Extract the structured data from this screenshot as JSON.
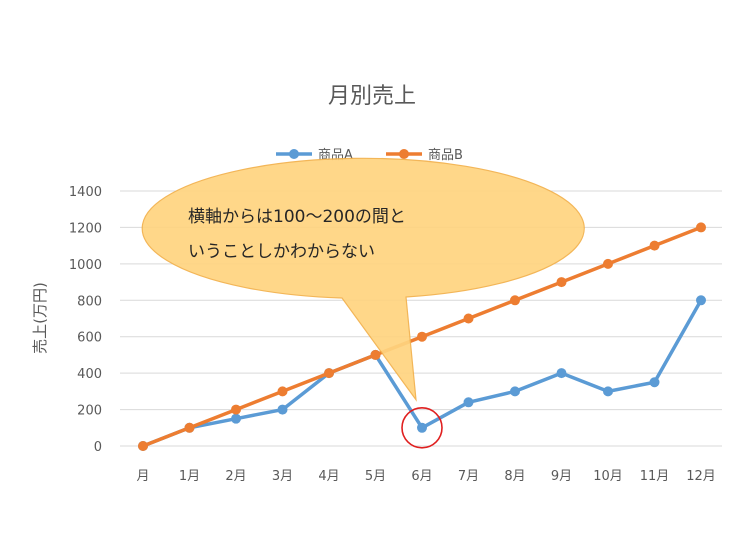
{
  "chart_data": {
    "type": "line",
    "title": "月別売上",
    "ylabel": "売上(万円)",
    "xlabel": "",
    "categories": [
      "月",
      "1月",
      "2月",
      "3月",
      "4月",
      "5月",
      "6月",
      "7月",
      "8月",
      "9月",
      "10月",
      "11月",
      "12月"
    ],
    "series": [
      {
        "name": "商品A",
        "color": "#5B9BD5",
        "values": [
          0,
          100,
          150,
          200,
          400,
          500,
          100,
          240,
          300,
          400,
          300,
          350,
          800
        ]
      },
      {
        "name": "商品B",
        "color": "#ED7D31",
        "values": [
          0,
          100,
          200,
          300,
          400,
          500,
          600,
          700,
          800,
          900,
          1000,
          1100,
          1200
        ]
      }
    ],
    "yticks": [
      0,
      200,
      400,
      600,
      800,
      1000,
      1200,
      1400
    ],
    "ylim": [
      0,
      1400
    ],
    "grid": true,
    "legend_position": "top"
  },
  "callout": {
    "lines": [
      "横軸からは100～200の間と",
      "いうことしかわからない"
    ],
    "fill": "#FFD480",
    "highlight_category": "6月",
    "highlight_color": "#E02020"
  }
}
